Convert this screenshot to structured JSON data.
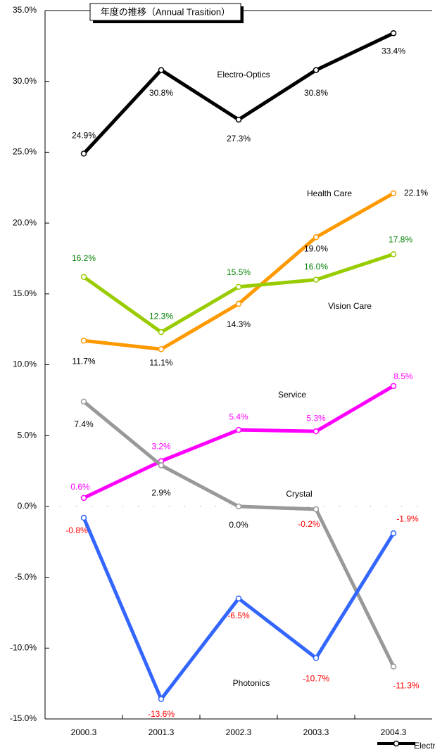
{
  "chart_data": {
    "type": "line",
    "title": "年度の推移（Annual Trasition）",
    "categories": [
      "2000.3",
      "2001.3",
      "2002.3",
      "2003.3",
      "2004.3"
    ],
    "ylim": [
      -15,
      35
    ],
    "yticks": [
      {
        "value": 35,
        "label": "35.0%"
      },
      {
        "value": 30,
        "label": "30.0%"
      },
      {
        "value": 25,
        "label": "25.0%"
      },
      {
        "value": 20,
        "label": "20.0%"
      },
      {
        "value": 15,
        "label": "15.0%"
      },
      {
        "value": 10,
        "label": "10.0%"
      },
      {
        "value": 5,
        "label": "5.0%"
      },
      {
        "value": 0,
        "label": "0.0%"
      },
      {
        "value": -5,
        "label": "-5.0%"
      },
      {
        "value": -10,
        "label": "-10.0%"
      },
      {
        "value": -15,
        "label": "-15.0%"
      }
    ],
    "negative_label_color": "#ff0000",
    "series": [
      {
        "name": "Electro-Optics",
        "color": "#000000",
        "label_color": "#000000",
        "values": [
          24.9,
          30.8,
          27.3,
          30.8,
          33.4
        ],
        "value_labels": [
          "24.9%",
          "30.8%",
          "27.3%",
          "30.8%",
          "33.4%"
        ]
      },
      {
        "name": "Health Care",
        "color": "#ff9900",
        "label_color": "#000000",
        "values": [
          11.7,
          11.1,
          14.3,
          19.0,
          22.1
        ],
        "value_labels": [
          "11.7%",
          "11.1%",
          "14.3%",
          "19.0%",
          "22.1%"
        ]
      },
      {
        "name": "Vision Care",
        "color": "#99cc00",
        "label_color": "#008000",
        "values": [
          16.2,
          12.3,
          15.5,
          16.0,
          17.8
        ],
        "value_labels": [
          "16.2%",
          "12.3%",
          "15.5%",
          "16.0%",
          "17.8%"
        ]
      },
      {
        "name": "Service",
        "color": "#ff00ff",
        "label_color": "#ff00ff",
        "values": [
          0.6,
          3.2,
          5.4,
          5.3,
          8.5
        ],
        "value_labels": [
          "0.6%",
          "3.2%",
          "5.4%",
          "5.3%",
          "8.5%"
        ]
      },
      {
        "name": "Crystal",
        "color": "#999999",
        "label_color": "#000000",
        "values": [
          7.4,
          2.9,
          0.0,
          -0.2,
          -11.3
        ],
        "value_labels": [
          "7.4%",
          "2.9%",
          "0.0%",
          "-0.2%",
          "-11.3%"
        ]
      },
      {
        "name": "Photonics",
        "color": "#3366ff",
        "label_color": "#000000",
        "values": [
          -0.8,
          -13.6,
          -6.5,
          -10.7,
          -1.9
        ],
        "value_labels": [
          "-0.8%",
          "-13.6%",
          "-6.5%",
          "-10.7%",
          "-1.9%"
        ]
      }
    ]
  }
}
